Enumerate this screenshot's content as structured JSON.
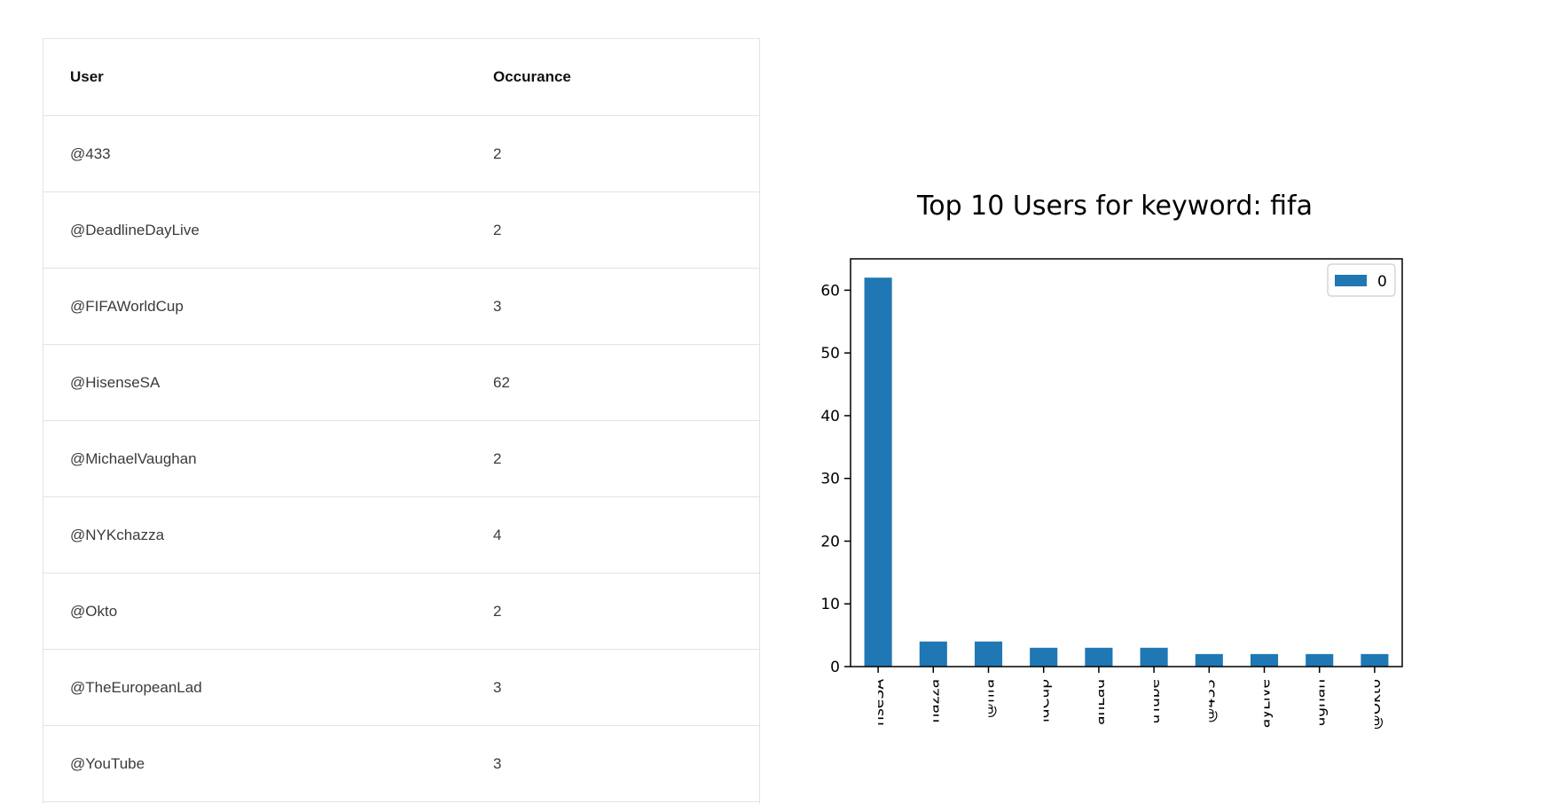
{
  "table": {
    "headers": {
      "user": "User",
      "count": "Occurance"
    },
    "rows": [
      {
        "user": "@433",
        "count": "2"
      },
      {
        "user": "@DeadlineDayLive",
        "count": "2"
      },
      {
        "user": "@FIFAWorldCup",
        "count": "3"
      },
      {
        "user": "@HisenseSA",
        "count": "62"
      },
      {
        "user": "@MichaelVaughan",
        "count": "2"
      },
      {
        "user": "@NYKchazza",
        "count": "4"
      },
      {
        "user": "@Okto",
        "count": "2"
      },
      {
        "user": "@TheEuropeanLad",
        "count": "3"
      },
      {
        "user": "@YouTube",
        "count": "3"
      }
    ]
  },
  "chart_data": {
    "type": "bar",
    "title": "Top 10 Users for keyword: fifa",
    "xlabel": "",
    "ylabel": "",
    "categories": [
      "nseSA",
      "hazza",
      "@fifa",
      "ldCup",
      "anLad",
      "uTube",
      "@433",
      "ayLive",
      "ughan",
      "@Okto"
    ],
    "series": [
      {
        "name": "0",
        "values": [
          62,
          4,
          4,
          3,
          3,
          3,
          2,
          2,
          2,
          2
        ]
      }
    ],
    "ylim": [
      0,
      65
    ],
    "yticks": [
      0,
      10,
      20,
      30,
      40,
      50,
      60
    ],
    "legend": "top-right",
    "grid": false,
    "colors": {
      "bar": "#1f77b4",
      "axis": "#000000"
    }
  }
}
